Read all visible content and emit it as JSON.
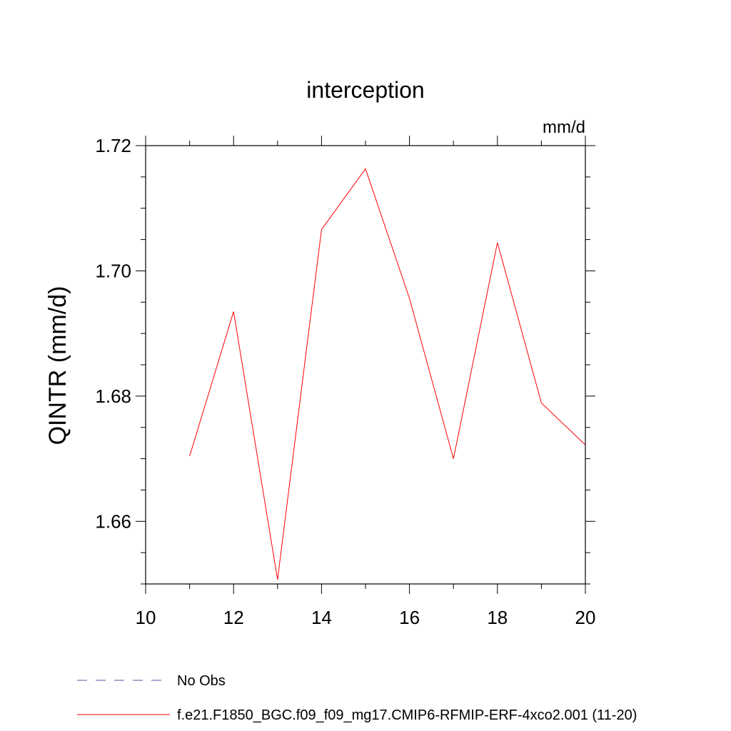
{
  "chart_data": {
    "type": "line",
    "title": "interception",
    "units_label": "mm/d",
    "xlabel": "",
    "ylabel": "QINTR  (mm/d)",
    "xlim": [
      10,
      20
    ],
    "ylim": [
      1.65,
      1.72
    ],
    "xticks": [
      10,
      12,
      14,
      16,
      18,
      20
    ],
    "xtick_labels": [
      "10",
      "12",
      "14",
      "16",
      "18",
      "20"
    ],
    "yticks": [
      1.66,
      1.68,
      1.7,
      1.72
    ],
    "ytick_labels": [
      "1.66",
      "1.68",
      "1.70",
      "1.72"
    ],
    "grid": false,
    "series": [
      {
        "name": "f.e21.F1850_BGC.f09_f09_mg17.CMIP6-RFMIP-ERF-4xco2.001 (11-20)",
        "color": "#ff0000",
        "x": [
          11,
          12,
          13,
          14,
          15,
          16,
          17,
          18,
          19,
          20
        ],
        "y": [
          1.6704,
          1.6935,
          1.6507,
          1.7066,
          1.7163,
          1.6956,
          1.67,
          1.7045,
          1.6789,
          1.6722
        ]
      }
    ],
    "legend": [
      {
        "label": "No Obs",
        "style": "dashed",
        "color": "#5b4fa0"
      },
      {
        "label": "f.e21.F1850_BGC.f09_f09_mg17.CMIP6-RFMIP-ERF-4xco2.001 (11-20)",
        "style": "solid",
        "color": "#ff0000"
      }
    ],
    "legend_position": "bottom-left"
  }
}
